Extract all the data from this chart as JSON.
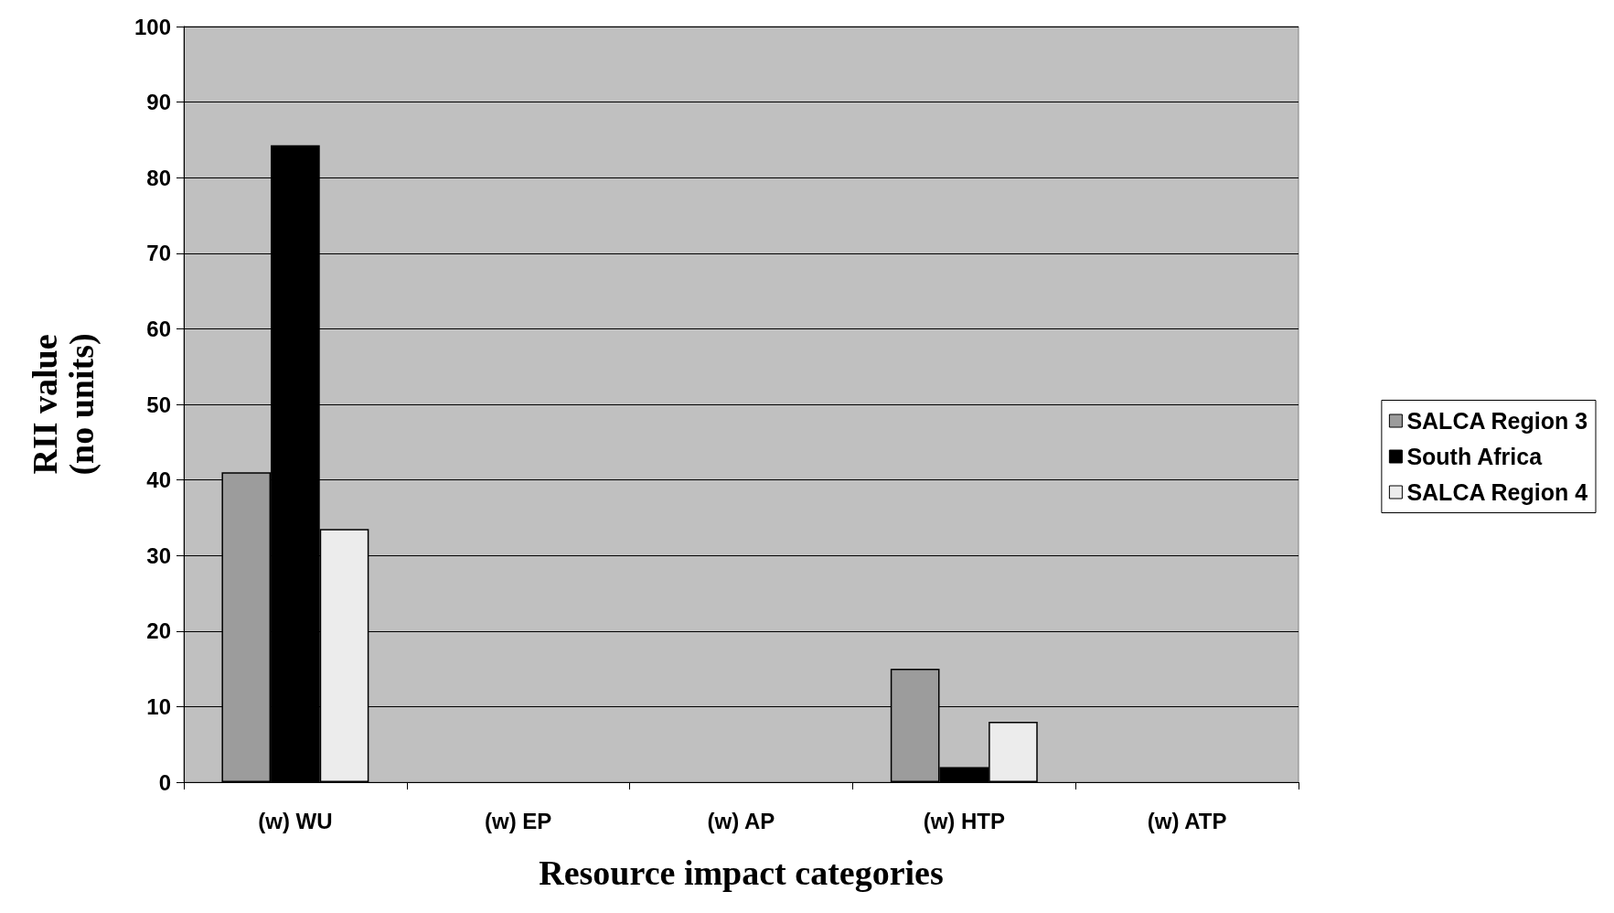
{
  "chart_data": {
    "type": "bar",
    "xlabel": "Resource impact categories",
    "ylabel": "RII value\n(no units)",
    "categories": [
      "(w) WU",
      "(w) EP",
      "(w) AP",
      "(w) HTP",
      "(w) ATP"
    ],
    "series": [
      {
        "name": "SALCA Region 3",
        "color": "#9c9c9c",
        "values": [
          41,
          null,
          null,
          15,
          null
        ]
      },
      {
        "name": "South Africa",
        "color": "#000000",
        "values": [
          84.3,
          null,
          null,
          2,
          null
        ]
      },
      {
        "name": "SALCA Region 4",
        "color": "#ececec",
        "values": [
          33.5,
          null,
          null,
          8,
          null
        ]
      }
    ],
    "ylim": [
      0,
      100
    ],
    "yticks": [
      0,
      10,
      20,
      30,
      40,
      50,
      60,
      70,
      80,
      90,
      100
    ],
    "grid": "y",
    "legend": "right"
  }
}
